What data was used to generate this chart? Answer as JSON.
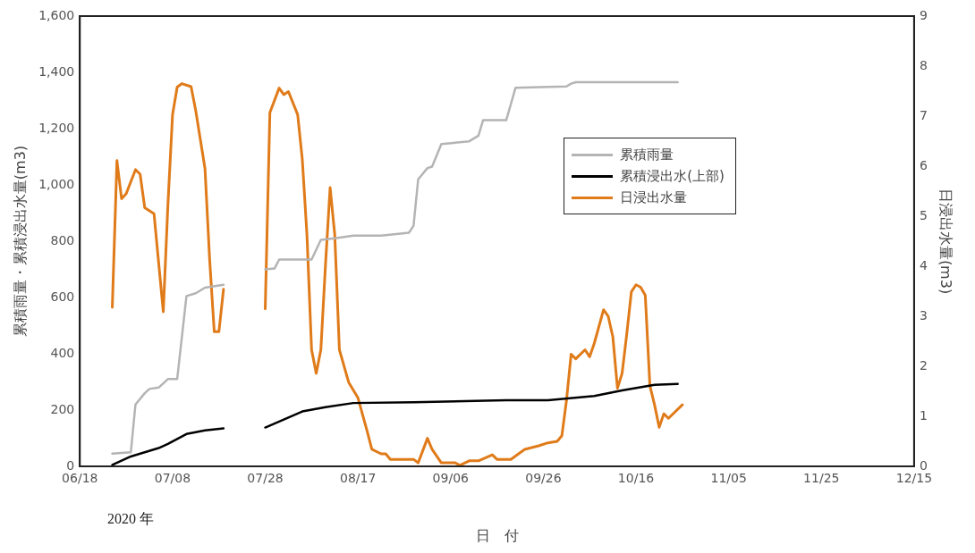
{
  "chart_data": {
    "type": "line",
    "xlabel": "日　付",
    "ylabel": "累積雨量・累積浸出水量(m3)",
    "y2label": "日浸出水量(m3)",
    "annotations": [
      "2020 年"
    ],
    "xlim": [
      "2020-06-18",
      "2020-12-15"
    ],
    "xticks": [
      {
        "value": "2020-06-18",
        "label": "06/18"
      },
      {
        "value": "2020-07-08",
        "label": "07/08"
      },
      {
        "value": "2020-07-28",
        "label": "07/28"
      },
      {
        "value": "2020-08-17",
        "label": "08/17"
      },
      {
        "value": "2020-09-06",
        "label": "09/06"
      },
      {
        "value": "2020-09-26",
        "label": "09/26"
      },
      {
        "value": "2020-10-16",
        "label": "10/16"
      },
      {
        "value": "2020-11-05",
        "label": "11/05"
      },
      {
        "value": "2020-11-25",
        "label": "11/25"
      },
      {
        "value": "2020-12-15",
        "label": "12/15"
      }
    ],
    "ylim": [
      0,
      1600
    ],
    "yticks": [
      0,
      {
        "value": 200,
        "label": "200"
      },
      {
        "value": 400,
        "label": "400"
      },
      {
        "value": 600,
        "label": "600"
      },
      {
        "value": 800,
        "label": "800"
      },
      {
        "value": 1000,
        "label": "1,000"
      },
      {
        "value": 1200,
        "label": "1,200"
      },
      {
        "value": 1400,
        "label": "1,400"
      },
      {
        "value": 1600,
        "label": "1,600"
      }
    ],
    "y2lim": [
      0,
      9
    ],
    "y2ticks": [
      0,
      1,
      2,
      3,
      4,
      5,
      6,
      7,
      8,
      9
    ],
    "grid": false,
    "legend": "right",
    "marker": "none",
    "line_style": "solid",
    "series": [
      {
        "name": "累積雨量",
        "color": "#b4b4b4",
        "axis": "y",
        "x": [
          "2020-06-25",
          "2020-06-29",
          "2020-06-30",
          "2020-07-02",
          "2020-07-03",
          "2020-07-05",
          "2020-07-07",
          "2020-07-09",
          "2020-07-11",
          "2020-07-13",
          "2020-07-15",
          "2020-07-19",
          "2020-07-24",
          "2020-07-28",
          "2020-07-30",
          "2020-07-31",
          "2020-08-07",
          "2020-08-09",
          "2020-08-12",
          "2020-08-16",
          "2020-08-22",
          "2020-08-28",
          "2020-08-29",
          "2020-08-30",
          "2020-09-01",
          "2020-09-02",
          "2020-09-04",
          "2020-09-10",
          "2020-09-12",
          "2020-09-13",
          "2020-09-18",
          "2020-09-20",
          "2020-10-01",
          "2020-10-02",
          "2020-10-03",
          "2020-10-25"
        ],
        "values": [
          45,
          50,
          220,
          260,
          275,
          280,
          310,
          310,
          605,
          615,
          635,
          645,
          null,
          700,
          703,
          735,
          735,
          805,
          810,
          820,
          820,
          830,
          855,
          1020,
          1060,
          1065,
          1145,
          1155,
          1175,
          1230,
          1230,
          1345,
          1350,
          1360,
          1365,
          1365
        ]
      },
      {
        "name": "累積浸出水(上部)",
        "color": "#000000",
        "axis": "y",
        "x": [
          "2020-06-25",
          "2020-06-29",
          "2020-07-02",
          "2020-07-05",
          "2020-07-07",
          "2020-07-11",
          "2020-07-15",
          "2020-07-19",
          "2020-07-24",
          "2020-07-28",
          "2020-08-05",
          "2020-08-10",
          "2020-08-16",
          "2020-08-29",
          "2020-09-18",
          "2020-09-27",
          "2020-10-07",
          "2020-10-13",
          "2020-10-20",
          "2020-10-25"
        ],
        "values": [
          5,
          35,
          50,
          65,
          80,
          115,
          128,
          135,
          null,
          138,
          195,
          210,
          225,
          228,
          235,
          235,
          250,
          270,
          290,
          293
        ]
      },
      {
        "name": "日浸出水量",
        "color": "#e07b1a",
        "axis": "y2",
        "x": [
          "2020-06-25",
          "2020-06-26",
          "2020-06-27",
          "2020-06-28",
          "2020-06-30",
          "2020-07-01",
          "2020-07-02",
          "2020-07-04",
          "2020-07-06",
          "2020-07-07",
          "2020-07-08",
          "2020-07-09",
          "2020-07-10",
          "2020-07-12",
          "2020-07-13",
          "2020-07-15",
          "2020-07-16",
          "2020-07-17",
          "2020-07-18",
          "2020-07-19",
          "2020-07-24",
          "2020-07-28",
          "2020-07-29",
          "2020-07-31",
          "2020-08-01",
          "2020-08-02",
          "2020-08-04",
          "2020-08-05",
          "2020-08-06",
          "2020-08-07",
          "2020-08-08",
          "2020-08-09",
          "2020-08-10",
          "2020-08-11",
          "2020-08-12",
          "2020-08-13",
          "2020-08-15",
          "2020-08-17",
          "2020-08-19",
          "2020-08-20",
          "2020-08-22",
          "2020-08-23",
          "2020-08-24",
          "2020-08-29",
          "2020-08-30",
          "2020-09-01",
          "2020-09-02",
          "2020-09-04",
          "2020-09-07",
          "2020-09-08",
          "2020-09-10",
          "2020-09-12",
          "2020-09-15",
          "2020-09-16",
          "2020-09-19",
          "2020-09-22",
          "2020-09-25",
          "2020-09-27",
          "2020-09-29",
          "2020-09-30",
          "2020-10-01",
          "2020-10-02",
          "2020-10-03",
          "2020-10-05",
          "2020-10-06",
          "2020-10-07",
          "2020-10-09",
          "2020-10-10",
          "2020-10-11",
          "2020-10-12",
          "2020-10-13",
          "2020-10-14",
          "2020-10-15",
          "2020-10-16",
          "2020-10-17",
          "2020-10-18",
          "2020-10-19",
          "2020-10-20",
          "2020-10-21",
          "2020-10-22",
          "2020-10-23",
          "2020-10-26"
        ],
        "values": [
          3.18,
          6.11,
          5.35,
          5.45,
          5.93,
          5.84,
          5.17,
          5.05,
          3.09,
          5.23,
          7.03,
          7.58,
          7.65,
          7.59,
          7.11,
          5.95,
          4.14,
          2.69,
          2.69,
          3.54,
          null,
          3.15,
          7.07,
          7.56,
          7.43,
          7.49,
          7.03,
          6.13,
          4.63,
          2.33,
          1.86,
          2.33,
          4.03,
          5.57,
          4.63,
          2.33,
          1.68,
          1.37,
          0.7,
          0.34,
          0.25,
          0.25,
          0.14,
          0.14,
          0.07,
          0.56,
          0.34,
          0.07,
          0.07,
          0.02,
          0.11,
          0.11,
          0.23,
          0.14,
          0.14,
          0.34,
          0.41,
          0.47,
          0.5,
          0.61,
          1.32,
          2.24,
          2.15,
          2.33,
          2.19,
          2.46,
          3.13,
          3.0,
          2.59,
          1.56,
          1.86,
          2.64,
          3.49,
          3.63,
          3.58,
          3.42,
          1.61,
          1.23,
          0.78,
          1.05,
          0.96,
          1.23
        ]
      }
    ]
  }
}
